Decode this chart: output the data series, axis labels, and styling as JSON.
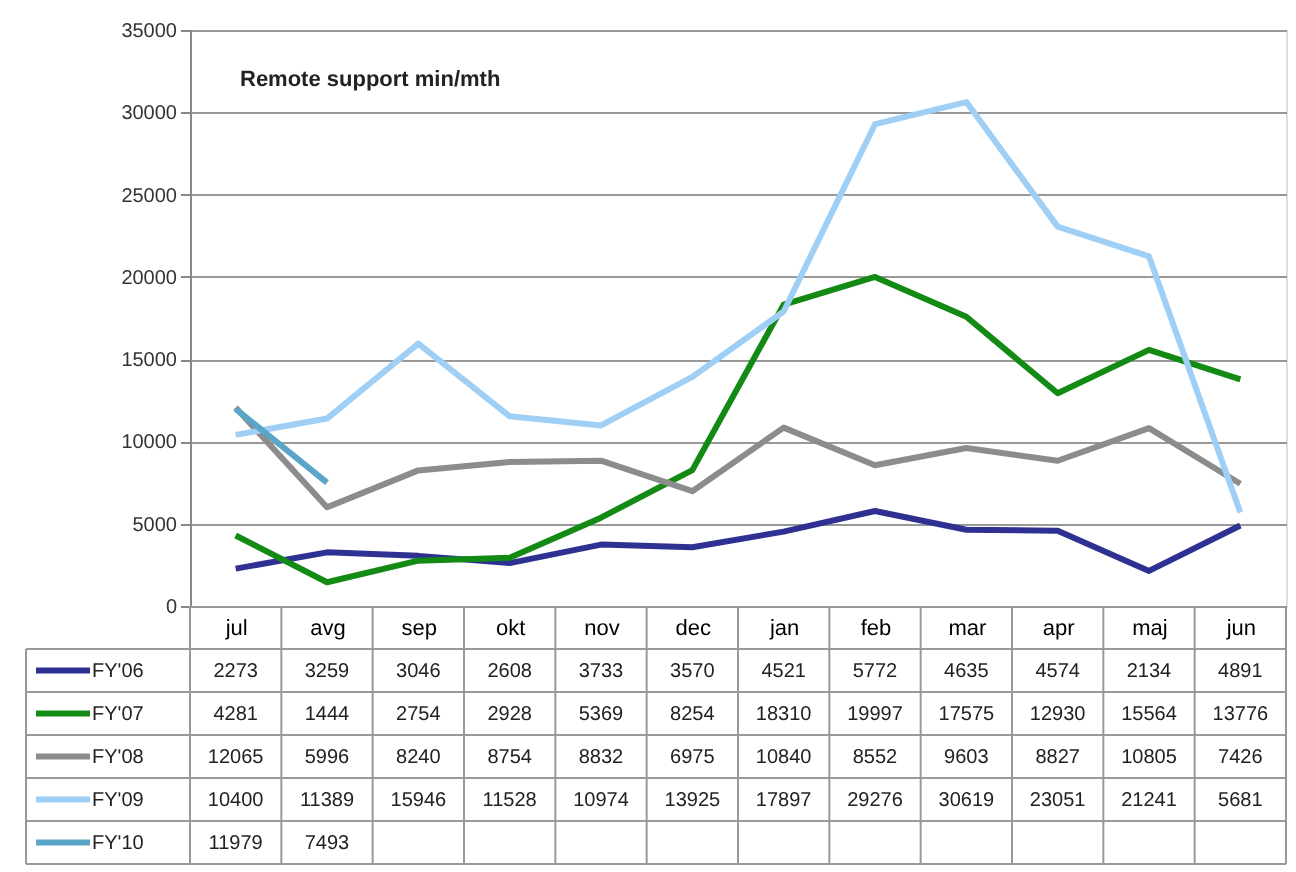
{
  "chart_data": {
    "type": "line",
    "title": "Remote support min/mth",
    "categories": [
      "jul",
      "avg",
      "sep",
      "okt",
      "nov",
      "dec",
      "jan",
      "feb",
      "mar",
      "apr",
      "maj",
      "jun"
    ],
    "series": [
      {
        "name": "FY'06",
        "color": "#2e3192",
        "values": [
          2273,
          3259,
          3046,
          2608,
          3733,
          3570,
          4521,
          5772,
          4635,
          4574,
          2134,
          4891
        ]
      },
      {
        "name": "FY'07",
        "color": "#138a13",
        "values": [
          4281,
          1444,
          2754,
          2928,
          5369,
          8254,
          18310,
          19997,
          17575,
          12930,
          15564,
          13776
        ]
      },
      {
        "name": "FY'08",
        "color": "#8c8c8c",
        "values": [
          12065,
          5996,
          8240,
          8754,
          8832,
          6975,
          10840,
          8552,
          9603,
          8827,
          10805,
          7426
        ]
      },
      {
        "name": "FY'09",
        "color": "#9fcff5",
        "values": [
          10400,
          11389,
          15946,
          11528,
          10974,
          13925,
          17897,
          29276,
          30619,
          23051,
          21241,
          5681
        ]
      },
      {
        "name": "FY'10",
        "color": "#5aa5c8",
        "values": [
          11979,
          7493,
          null,
          null,
          null,
          null,
          null,
          null,
          null,
          null,
          null,
          null
        ]
      }
    ],
    "ylim": [
      0,
      35000
    ],
    "yticks": [
      0,
      5000,
      10000,
      15000,
      20000,
      25000,
      30000,
      35000
    ],
    "grid": "y",
    "legend": "bottom left",
    "data_labels": true,
    "marker": "none",
    "line_style": "solid"
  }
}
